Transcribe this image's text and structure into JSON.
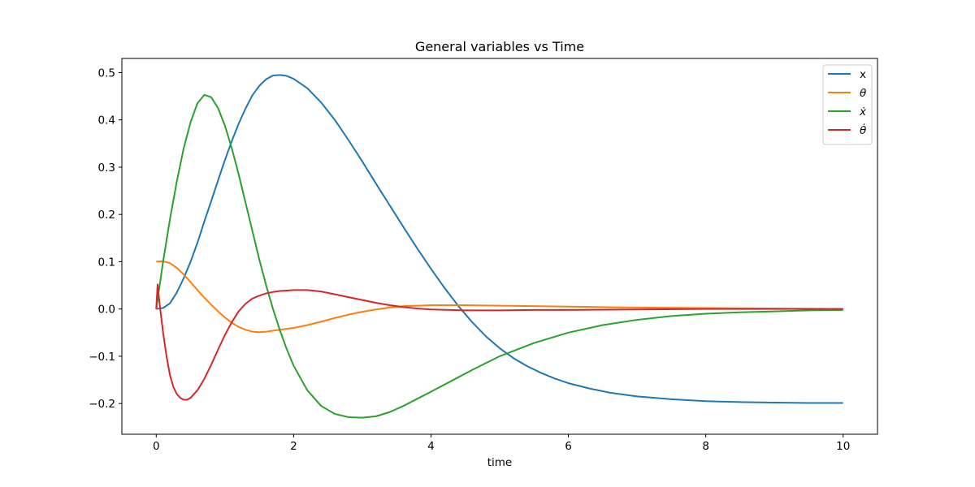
{
  "chart_data": {
    "type": "line",
    "title": "General variables vs Time",
    "xlabel": "time",
    "ylabel": "",
    "xlim": [
      -0.5,
      10.5
    ],
    "ylim": [
      -0.265,
      0.53
    ],
    "x_ticks": [
      0,
      2,
      4,
      6,
      8,
      10
    ],
    "x_tick_labels": [
      "0",
      "2",
      "4",
      "6",
      "8",
      "10"
    ],
    "y_ticks": [
      -0.2,
      -0.1,
      0.0,
      0.1,
      0.2,
      0.3,
      0.4,
      0.5
    ],
    "y_tick_labels": [
      "−0.2",
      "−0.1",
      "0.0",
      "0.1",
      "0.2",
      "0.3",
      "0.4",
      "0.5"
    ],
    "grid": false,
    "legend_position": "top-right",
    "series": [
      {
        "name": "x",
        "color": "#1f77b4",
        "points": [
          [
            0,
            0
          ],
          [
            0.1,
            0.002
          ],
          [
            0.2,
            0.012
          ],
          [
            0.3,
            0.035
          ],
          [
            0.4,
            0.065
          ],
          [
            0.5,
            0.1
          ],
          [
            0.6,
            0.14
          ],
          [
            0.7,
            0.185
          ],
          [
            0.8,
            0.228
          ],
          [
            0.9,
            0.272
          ],
          [
            1.0,
            0.315
          ],
          [
            1.1,
            0.355
          ],
          [
            1.2,
            0.392
          ],
          [
            1.3,
            0.424
          ],
          [
            1.4,
            0.452
          ],
          [
            1.5,
            0.472
          ],
          [
            1.6,
            0.486
          ],
          [
            1.7,
            0.494
          ],
          [
            1.8,
            0.495
          ],
          [
            1.9,
            0.493
          ],
          [
            2.0,
            0.487
          ],
          [
            2.2,
            0.467
          ],
          [
            2.4,
            0.437
          ],
          [
            2.6,
            0.4
          ],
          [
            2.8,
            0.357
          ],
          [
            3.0,
            0.312
          ],
          [
            3.2,
            0.265
          ],
          [
            3.4,
            0.219
          ],
          [
            3.6,
            0.173
          ],
          [
            3.8,
            0.128
          ],
          [
            4.0,
            0.085
          ],
          [
            4.2,
            0.044
          ],
          [
            4.4,
            0.006
          ],
          [
            4.6,
            -0.028
          ],
          [
            4.8,
            -0.058
          ],
          [
            5.0,
            -0.083
          ],
          [
            5.2,
            -0.104
          ],
          [
            5.4,
            -0.121
          ],
          [
            5.6,
            -0.135
          ],
          [
            5.8,
            -0.147
          ],
          [
            6.0,
            -0.157
          ],
          [
            6.3,
            -0.168
          ],
          [
            6.6,
            -0.177
          ],
          [
            7.0,
            -0.185
          ],
          [
            7.5,
            -0.191
          ],
          [
            8.0,
            -0.195
          ],
          [
            8.5,
            -0.197
          ],
          [
            9.0,
            -0.198
          ],
          [
            9.5,
            -0.199
          ],
          [
            10.0,
            -0.199
          ]
        ]
      },
      {
        "name": "θ",
        "color": "#ff7f0e",
        "points": [
          [
            0,
            0.1
          ],
          [
            0.1,
            0.101
          ],
          [
            0.2,
            0.097
          ],
          [
            0.3,
            0.087
          ],
          [
            0.4,
            0.073
          ],
          [
            0.5,
            0.057
          ],
          [
            0.6,
            0.04
          ],
          [
            0.7,
            0.024
          ],
          [
            0.8,
            0.009
          ],
          [
            0.9,
            -0.005
          ],
          [
            1.0,
            -0.018
          ],
          [
            1.1,
            -0.029
          ],
          [
            1.2,
            -0.038
          ],
          [
            1.3,
            -0.044
          ],
          [
            1.4,
            -0.048
          ],
          [
            1.5,
            -0.049
          ],
          [
            1.6,
            -0.048
          ],
          [
            1.8,
            -0.044
          ],
          [
            2.0,
            -0.04
          ],
          [
            2.2,
            -0.034
          ],
          [
            2.4,
            -0.027
          ],
          [
            2.6,
            -0.019
          ],
          [
            2.8,
            -0.012
          ],
          [
            3.0,
            -0.006
          ],
          [
            3.2,
            -0.001
          ],
          [
            3.4,
            0.003
          ],
          [
            3.6,
            0.006
          ],
          [
            3.8,
            0.007
          ],
          [
            4.0,
            0.008
          ],
          [
            4.5,
            0.008
          ],
          [
            5.0,
            0.007
          ],
          [
            5.5,
            0.006
          ],
          [
            6.0,
            0.005
          ],
          [
            6.5,
            0.004
          ],
          [
            7.0,
            0.003
          ],
          [
            8.0,
            0.002
          ],
          [
            9.0,
            0.001
          ],
          [
            10.0,
            0.0
          ]
        ]
      },
      {
        "name": "ẋ",
        "color": "#2ca02c",
        "points": [
          [
            0,
            0
          ],
          [
            0.05,
            0.05
          ],
          [
            0.1,
            0.1
          ],
          [
            0.2,
            0.19
          ],
          [
            0.3,
            0.27
          ],
          [
            0.4,
            0.34
          ],
          [
            0.5,
            0.395
          ],
          [
            0.6,
            0.435
          ],
          [
            0.7,
            0.453
          ],
          [
            0.8,
            0.448
          ],
          [
            0.9,
            0.425
          ],
          [
            1.0,
            0.388
          ],
          [
            1.1,
            0.34
          ],
          [
            1.2,
            0.285
          ],
          [
            1.3,
            0.225
          ],
          [
            1.4,
            0.165
          ],
          [
            1.5,
            0.105
          ],
          [
            1.6,
            0.05
          ],
          [
            1.7,
            0.0
          ],
          [
            1.8,
            -0.045
          ],
          [
            1.9,
            -0.085
          ],
          [
            2.0,
            -0.12
          ],
          [
            2.2,
            -0.172
          ],
          [
            2.4,
            -0.205
          ],
          [
            2.6,
            -0.222
          ],
          [
            2.8,
            -0.229
          ],
          [
            3.0,
            -0.23
          ],
          [
            3.2,
            -0.227
          ],
          [
            3.4,
            -0.218
          ],
          [
            3.6,
            -0.205
          ],
          [
            3.8,
            -0.19
          ],
          [
            4.0,
            -0.175
          ],
          [
            4.3,
            -0.152
          ],
          [
            4.6,
            -0.129
          ],
          [
            5.0,
            -0.1
          ],
          [
            5.5,
            -0.072
          ],
          [
            6.0,
            -0.05
          ],
          [
            6.5,
            -0.034
          ],
          [
            7.0,
            -0.023
          ],
          [
            7.5,
            -0.015
          ],
          [
            8.0,
            -0.01
          ],
          [
            8.5,
            -0.007
          ],
          [
            9.0,
            -0.005
          ],
          [
            9.5,
            -0.003
          ],
          [
            10.0,
            -0.002
          ]
        ]
      },
      {
        "name": "θ̇",
        "color": "#d62728",
        "points": [
          [
            0,
            0
          ],
          [
            0.02,
            0.052
          ],
          [
            0.05,
            0.01
          ],
          [
            0.1,
            -0.05
          ],
          [
            0.15,
            -0.1
          ],
          [
            0.2,
            -0.14
          ],
          [
            0.25,
            -0.165
          ],
          [
            0.3,
            -0.18
          ],
          [
            0.35,
            -0.188
          ],
          [
            0.4,
            -0.192
          ],
          [
            0.45,
            -0.192
          ],
          [
            0.5,
            -0.188
          ],
          [
            0.6,
            -0.172
          ],
          [
            0.7,
            -0.148
          ],
          [
            0.8,
            -0.118
          ],
          [
            0.9,
            -0.086
          ],
          [
            1.0,
            -0.055
          ],
          [
            1.1,
            -0.028
          ],
          [
            1.2,
            -0.005
          ],
          [
            1.3,
            0.011
          ],
          [
            1.4,
            0.022
          ],
          [
            1.5,
            0.028
          ],
          [
            1.6,
            0.033
          ],
          [
            1.7,
            0.036
          ],
          [
            1.8,
            0.038
          ],
          [
            1.9,
            0.039
          ],
          [
            2.0,
            0.04
          ],
          [
            2.2,
            0.04
          ],
          [
            2.4,
            0.037
          ],
          [
            2.6,
            0.031
          ],
          [
            2.8,
            0.025
          ],
          [
            3.0,
            0.019
          ],
          [
            3.2,
            0.013
          ],
          [
            3.4,
            0.008
          ],
          [
            3.6,
            0.004
          ],
          [
            3.8,
            0.001
          ],
          [
            4.0,
            -0.001
          ],
          [
            4.5,
            -0.003
          ],
          [
            5.0,
            -0.003
          ],
          [
            5.5,
            -0.002
          ],
          [
            6.0,
            -0.002
          ],
          [
            7.0,
            -0.001
          ],
          [
            8.0,
            0.0
          ],
          [
            10.0,
            0.0
          ]
        ]
      }
    ]
  }
}
